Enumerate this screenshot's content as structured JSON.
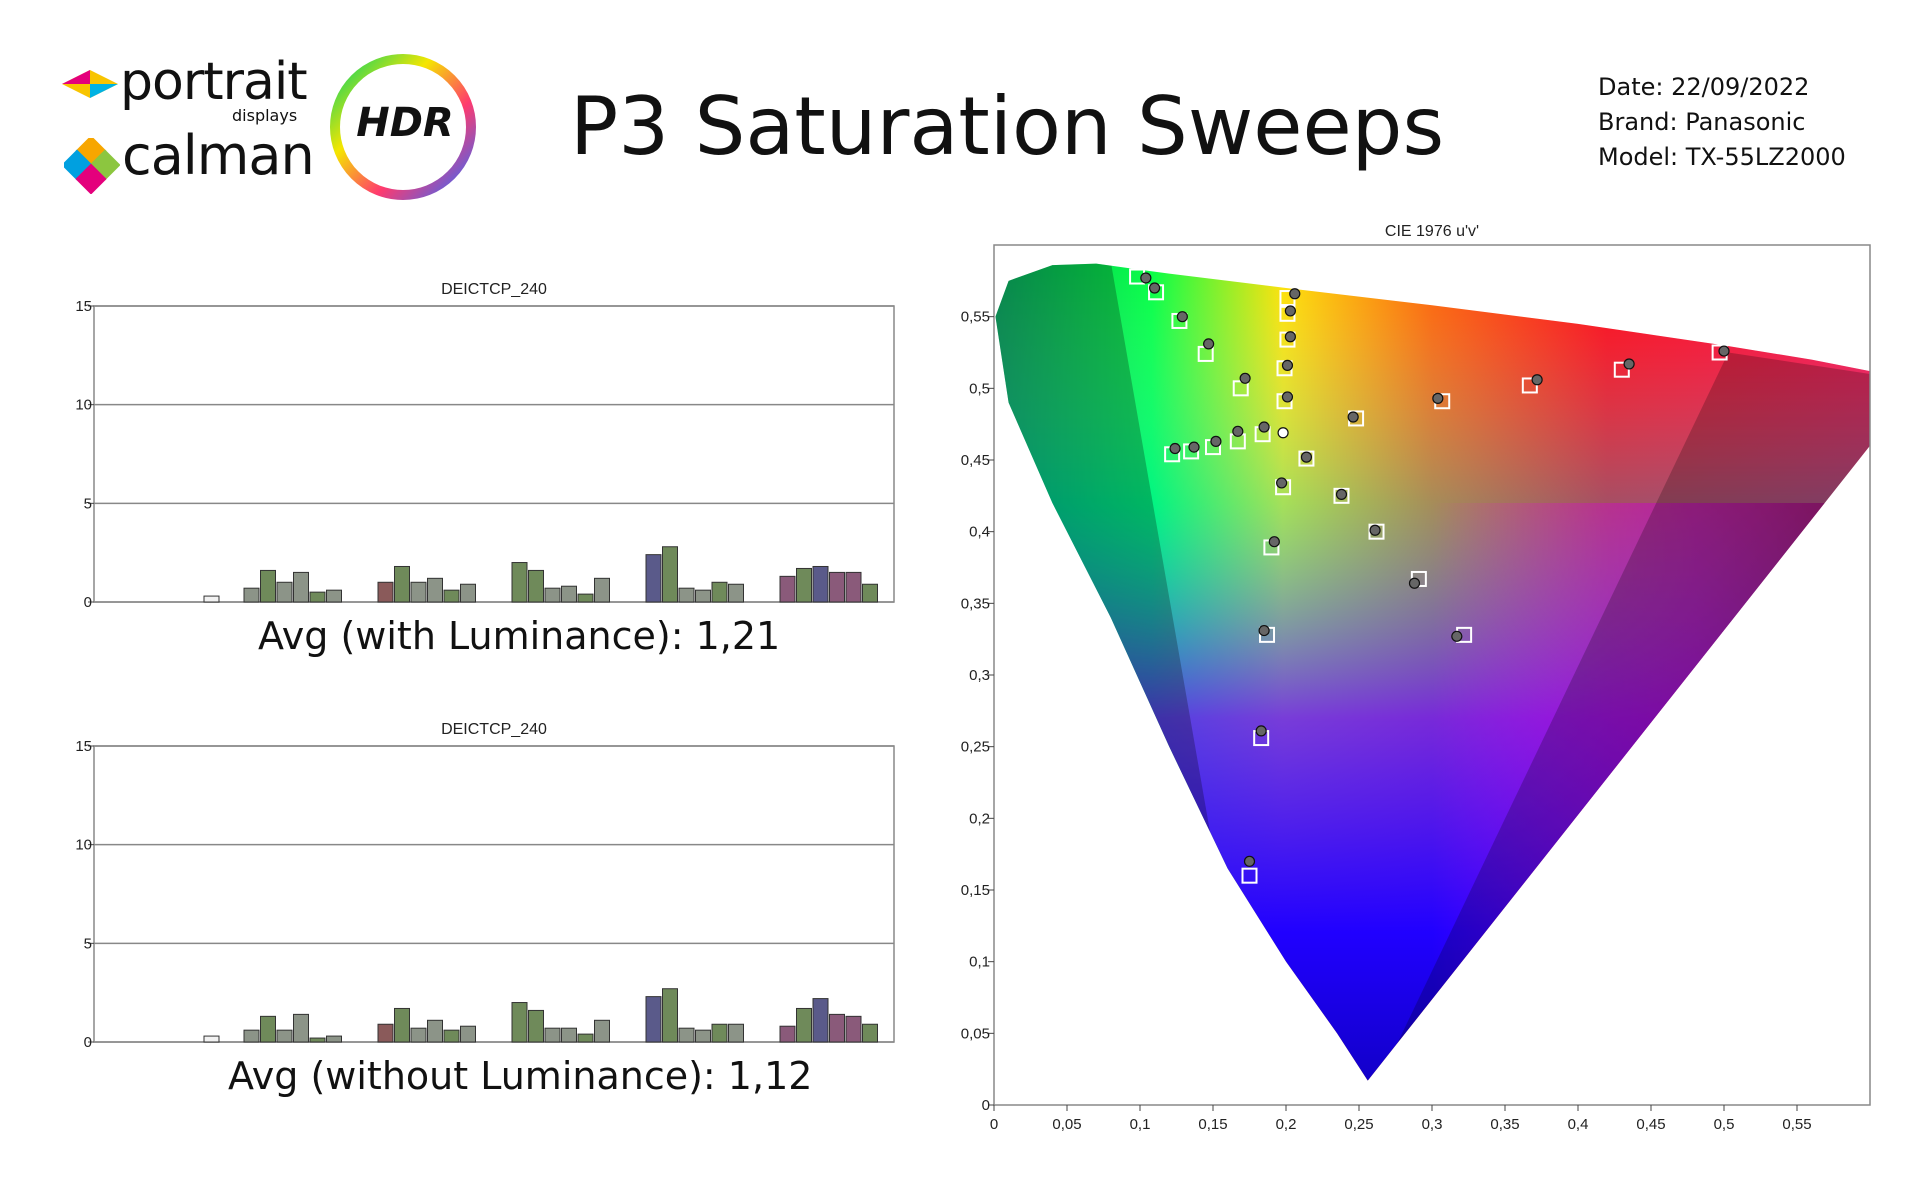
{
  "header": {
    "brand_portrait": "portrait",
    "brand_displays": "displays",
    "brand_calman": "calman",
    "badge": "HDR",
    "title": "P3 Saturation Sweeps",
    "meta_date": "Date: 22/09/2022",
    "meta_brand": "Brand: Panasonic",
    "meta_model": "Model: TX-55LZ2000"
  },
  "colors": {
    "bar_white": "#f2f2f2",
    "bar_gray": "#8c9488",
    "bar_red": "#8a5a5a",
    "bar_green": "#6f8a5a",
    "bar_blue": "#5a5a8a",
    "bar_magenta": "#8a5a7a",
    "target_marker": "#ffffff",
    "measured_marker": "#666666"
  },
  "chart_data": [
    {
      "type": "bar",
      "title": "DEICTCP_240",
      "ylim": [
        0,
        15
      ],
      "yticks": [
        "0",
        "5",
        "10",
        "15"
      ],
      "grid": true,
      "groups": [
        {
          "name": "white",
          "values": [
            0.3
          ]
        },
        {
          "name": "cyan",
          "values": [
            0.7,
            1.6,
            1.0,
            1.5,
            0.5,
            0.6
          ]
        },
        {
          "name": "red",
          "values": [
            1.0,
            1.8,
            1.0,
            1.2,
            0.6,
            0.9
          ]
        },
        {
          "name": "green",
          "values": [
            2.0,
            1.6,
            0.7,
            0.8,
            0.4,
            1.2
          ]
        },
        {
          "name": "blue",
          "values": [
            2.4,
            2.8,
            0.7,
            0.6,
            1.0,
            0.9
          ]
        },
        {
          "name": "magenta",
          "values": [
            1.3,
            1.7,
            1.8,
            1.5,
            1.5,
            0.9
          ]
        }
      ],
      "summary": "Avg (with Luminance): 1,21"
    },
    {
      "type": "bar",
      "title": "DEICTCP_240",
      "ylim": [
        0,
        15
      ],
      "yticks": [
        "0",
        "5",
        "10",
        "15"
      ],
      "grid": true,
      "groups": [
        {
          "name": "white",
          "values": [
            0.3
          ]
        },
        {
          "name": "cyan",
          "values": [
            0.6,
            1.3,
            0.6,
            1.4,
            0.2,
            0.3
          ]
        },
        {
          "name": "red",
          "values": [
            0.9,
            1.7,
            0.7,
            1.1,
            0.6,
            0.8
          ]
        },
        {
          "name": "green",
          "values": [
            2.0,
            1.6,
            0.7,
            0.7,
            0.4,
            1.1
          ]
        },
        {
          "name": "blue",
          "values": [
            2.3,
            2.7,
            0.7,
            0.6,
            0.9,
            0.9
          ]
        },
        {
          "name": "magenta",
          "values": [
            0.8,
            1.7,
            2.2,
            1.4,
            1.3,
            0.9
          ]
        }
      ],
      "summary": "Avg (without Luminance): 1,12"
    },
    {
      "type": "scatter",
      "title": "CIE 1976 u'v'",
      "xlim": [
        0,
        0.6
      ],
      "ylim": [
        0,
        0.6
      ],
      "xticks": [
        "0",
        "0,05",
        "0,1",
        "0,15",
        "0,2",
        "0,25",
        "0,3",
        "0,35",
        "0,4",
        "0,45",
        "0,5",
        "0,55"
      ],
      "yticks": [
        "0",
        "0,05",
        "0,1",
        "0,15",
        "0,2",
        "0,25",
        "0,3",
        "0,35",
        "0,4",
        "0,45",
        "0,5",
        "0,55"
      ],
      "series": [
        {
          "role": "target",
          "points": [
            [
              0.098,
              0.578
            ],
            [
              0.111,
              0.567
            ],
            [
              0.127,
              0.547
            ],
            [
              0.145,
              0.524
            ],
            [
              0.169,
              0.5
            ],
            [
              0.184,
              0.468
            ],
            [
              0.199,
              0.491
            ],
            [
              0.199,
              0.514
            ],
            [
              0.201,
              0.534
            ],
            [
              0.201,
              0.552
            ],
            [
              0.201,
              0.563
            ],
            [
              0.122,
              0.454
            ],
            [
              0.135,
              0.456
            ],
            [
              0.15,
              0.459
            ],
            [
              0.167,
              0.463
            ],
            [
              0.214,
              0.451
            ],
            [
              0.248,
              0.479
            ],
            [
              0.307,
              0.491
            ],
            [
              0.367,
              0.502
            ],
            [
              0.43,
              0.513
            ],
            [
              0.497,
              0.525
            ],
            [
              0.198,
              0.431
            ],
            [
              0.19,
              0.389
            ],
            [
              0.187,
              0.328
            ],
            [
              0.183,
              0.256
            ],
            [
              0.175,
              0.16
            ],
            [
              0.238,
              0.425
            ],
            [
              0.262,
              0.4
            ],
            [
              0.291,
              0.367
            ],
            [
              0.322,
              0.328
            ]
          ]
        },
        {
          "role": "measured",
          "points": [
            [
              0.104,
              0.577
            ],
            [
              0.11,
              0.57
            ],
            [
              0.129,
              0.55
            ],
            [
              0.147,
              0.531
            ],
            [
              0.172,
              0.507
            ],
            [
              0.185,
              0.473
            ],
            [
              0.201,
              0.494
            ],
            [
              0.201,
              0.516
            ],
            [
              0.203,
              0.536
            ],
            [
              0.203,
              0.554
            ],
            [
              0.206,
              0.566
            ],
            [
              0.124,
              0.458
            ],
            [
              0.137,
              0.459
            ],
            [
              0.152,
              0.463
            ],
            [
              0.167,
              0.47
            ],
            [
              0.214,
              0.452
            ],
            [
              0.246,
              0.48
            ],
            [
              0.304,
              0.493
            ],
            [
              0.372,
              0.506
            ],
            [
              0.435,
              0.517
            ],
            [
              0.5,
              0.526
            ],
            [
              0.197,
              0.434
            ],
            [
              0.192,
              0.393
            ],
            [
              0.185,
              0.331
            ],
            [
              0.183,
              0.261
            ],
            [
              0.175,
              0.17
            ],
            [
              0.238,
              0.426
            ],
            [
              0.261,
              0.401
            ],
            [
              0.288,
              0.364
            ],
            [
              0.317,
              0.327
            ]
          ]
        },
        {
          "role": "white-point",
          "points": [
            [
              0.198,
              0.469
            ]
          ]
        }
      ]
    }
  ]
}
